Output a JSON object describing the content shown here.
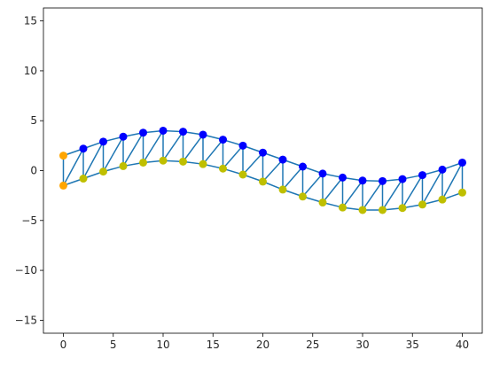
{
  "chart_data": {
    "type": "line",
    "title": "",
    "xlabel": "",
    "ylabel": "",
    "xlim": [
      -2,
      42
    ],
    "ylim": [
      -16.3,
      16.3
    ],
    "xticks": [
      0,
      5,
      10,
      15,
      20,
      25,
      30,
      35,
      40
    ],
    "yticks": [
      -15,
      -10,
      -5,
      0,
      5,
      10,
      15
    ],
    "grid": false,
    "legend": "none",
    "colors": {
      "edge": "#1f77b4",
      "top_node": "#0000ff",
      "bottom_node": "#bfbf00",
      "fixed_node": "#ffa500",
      "axis": "#000000"
    },
    "series": [
      {
        "values": [
          {
            "x": 0,
            "y": 1.5
          },
          {
            "x": 2,
            "y": 2.2
          },
          {
            "x": 4,
            "y": 2.9
          },
          {
            "x": 6,
            "y": 3.4
          },
          {
            "x": 8,
            "y": 3.8
          },
          {
            "x": 10,
            "y": 4.0
          },
          {
            "x": 12,
            "y": 3.9
          },
          {
            "x": 14,
            "y": 3.6
          },
          {
            "x": 16,
            "y": 3.1
          },
          {
            "x": 18,
            "y": 2.5
          },
          {
            "x": 20,
            "y": 1.8
          },
          {
            "x": 22,
            "y": 1.1
          },
          {
            "x": 24,
            "y": 0.4
          },
          {
            "x": 26,
            "y": -0.3
          },
          {
            "x": 28,
            "y": -0.7
          },
          {
            "x": 30,
            "y": -1.0
          },
          {
            "x": 32,
            "y": -1.05
          },
          {
            "x": 34,
            "y": -0.85
          },
          {
            "x": 36,
            "y": -0.45
          },
          {
            "x": 38,
            "y": 0.1
          },
          {
            "x": 40,
            "y": 0.8
          }
        ]
      },
      {
        "values": [
          {
            "x": 0,
            "y": -1.5
          },
          {
            "x": 2,
            "y": -0.8
          },
          {
            "x": 4,
            "y": -0.1
          },
          {
            "x": 6,
            "y": 0.45
          },
          {
            "x": 8,
            "y": 0.8
          },
          {
            "x": 10,
            "y": 1.0
          },
          {
            "x": 12,
            "y": 0.9
          },
          {
            "x": 14,
            "y": 0.65
          },
          {
            "x": 16,
            "y": 0.2
          },
          {
            "x": 18,
            "y": -0.4
          },
          {
            "x": 20,
            "y": -1.1
          },
          {
            "x": 22,
            "y": -1.9
          },
          {
            "x": 24,
            "y": -2.6
          },
          {
            "x": 26,
            "y": -3.2
          },
          {
            "x": 28,
            "y": -3.7
          },
          {
            "x": 30,
            "y": -3.95
          },
          {
            "x": 32,
            "y": -3.95
          },
          {
            "x": 34,
            "y": -3.75
          },
          {
            "x": 36,
            "y": -3.4
          },
          {
            "x": 38,
            "y": -2.9
          },
          {
            "x": 40,
            "y": -2.2
          }
        ]
      }
    ]
  }
}
